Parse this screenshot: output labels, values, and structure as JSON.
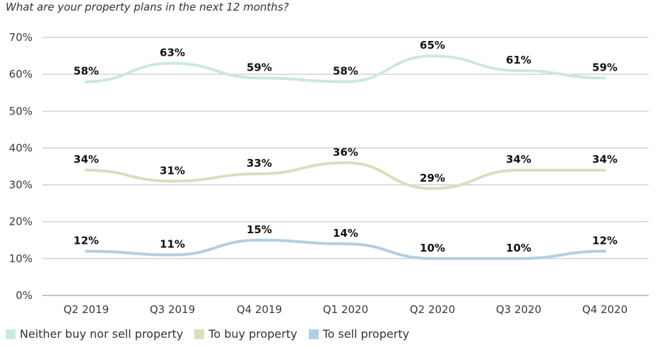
{
  "subtitle": "What are your property plans in the next 12 months?",
  "chart_data": {
    "type": "line",
    "categories": [
      "Q2 2019",
      "Q3 2019",
      "Q4 2019",
      "Q1 2020",
      "Q2 2020",
      "Q3 2020",
      "Q4 2020"
    ],
    "ylim": [
      0,
      70
    ],
    "yticks": [
      "0%",
      "10%",
      "20%",
      "30%",
      "40%",
      "50%",
      "60%",
      "70%"
    ],
    "ytick_values": [
      0,
      10,
      20,
      30,
      40,
      50,
      60,
      70
    ],
    "grid": "horizontal",
    "legend_position": "bottom",
    "series": [
      {
        "name": "Neither buy nor sell property",
        "color": "#cde8dd",
        "values": [
          58,
          63,
          59,
          58,
          65,
          61,
          59
        ],
        "labels": [
          "58%",
          "63%",
          "59%",
          "58%",
          "65%",
          "61%",
          "59%"
        ]
      },
      {
        "name": "To buy property",
        "color": "#d9dfbe",
        "values": [
          34,
          31,
          33,
          36,
          29,
          34,
          34
        ],
        "labels": [
          "34%",
          "31%",
          "33%",
          "36%",
          "29%",
          "34%",
          "34%"
        ]
      },
      {
        "name": "To sell property",
        "color": "#b3cfe0",
        "values": [
          12,
          11,
          15,
          14,
          10,
          10,
          12
        ],
        "labels": [
          "12%",
          "11%",
          "15%",
          "14%",
          "10%",
          "10%",
          "12%"
        ]
      }
    ]
  }
}
